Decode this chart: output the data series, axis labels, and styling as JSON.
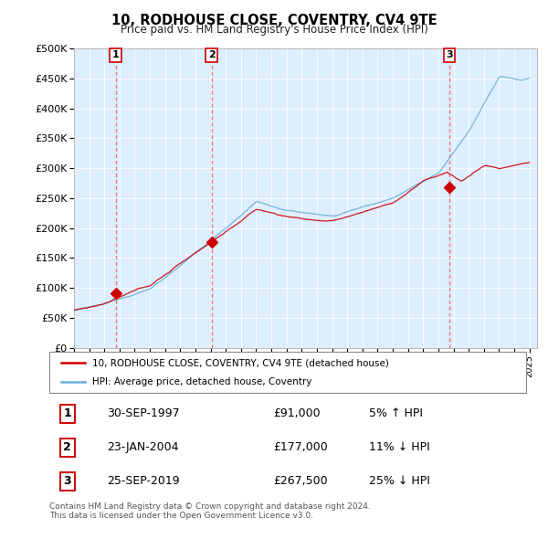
{
  "title": "10, RODHOUSE CLOSE, COVENTRY, CV4 9TE",
  "subtitle": "Price paid vs. HM Land Registry's House Price Index (HPI)",
  "ylabel_ticks": [
    "£0",
    "£50K",
    "£100K",
    "£150K",
    "£200K",
    "£250K",
    "£300K",
    "£350K",
    "£400K",
    "£450K",
    "£500K"
  ],
  "ytick_values": [
    0,
    50000,
    100000,
    150000,
    200000,
    250000,
    300000,
    350000,
    400000,
    450000,
    500000
  ],
  "sales": [
    {
      "date_num": 1997.75,
      "price": 91000,
      "label": "1",
      "date_str": "30-SEP-1997"
    },
    {
      "date_num": 2004.06,
      "price": 177000,
      "label": "2",
      "date_str": "23-JAN-2004"
    },
    {
      "date_num": 2019.73,
      "price": 267500,
      "label": "3",
      "date_str": "25-SEP-2019"
    }
  ],
  "hpi_color": "#6baed6",
  "price_color": "#cc0000",
  "dashed_color": "#e87878",
  "bg_color": "#ddeeff",
  "legend_entry1": "10, RODHOUSE CLOSE, COVENTRY, CV4 9TE (detached house)",
  "legend_entry2": "HPI: Average price, detached house, Coventry",
  "footnote": "Contains HM Land Registry data © Crown copyright and database right 2024.\nThis data is licensed under the Open Government Licence v3.0.",
  "table_rows": [
    {
      "num": "1",
      "date": "30-SEP-1997",
      "price": "£91,000",
      "pct": "5% ↑ HPI"
    },
    {
      "num": "2",
      "date": "23-JAN-2004",
      "price": "£177,000",
      "pct": "11% ↓ HPI"
    },
    {
      "num": "3",
      "date": "25-SEP-2019",
      "price": "£267,500",
      "pct": "25% ↓ HPI"
    }
  ]
}
